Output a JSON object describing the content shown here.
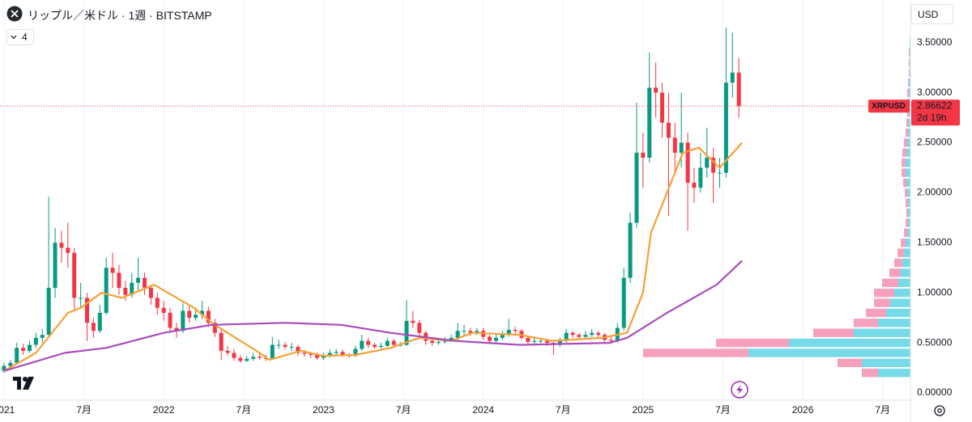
{
  "chart_data": {
    "type": "candlestick",
    "title": "リップル／米ドル · 1週 · BITSTAMP",
    "indicator_count": 4,
    "currency": "USD",
    "symbol": "XRPUSD",
    "countdown": "2d 19h",
    "up_color": "#089981",
    "down_color": "#f23645",
    "grid": true,
    "x": [
      2021,
      2021.04,
      2021.08,
      2021.12,
      2021.16,
      2021.2,
      2021.24,
      2021.28,
      2021.32,
      2021.36,
      2021.4,
      2021.44,
      2021.48,
      2021.52,
      2021.56,
      2021.6,
      2021.64,
      2021.68,
      2021.72,
      2021.76,
      2021.8,
      2021.84,
      2021.88,
      2021.92,
      2021.96,
      2022,
      2022.04,
      2022.08,
      2022.12,
      2022.16,
      2022.2,
      2022.24,
      2022.28,
      2022.32,
      2022.36,
      2022.4,
      2022.44,
      2022.48,
      2022.52,
      2022.56,
      2022.6,
      2022.64,
      2022.68,
      2022.72,
      2022.76,
      2022.8,
      2022.84,
      2022.88,
      2022.92,
      2022.96,
      2023,
      2023.04,
      2023.08,
      2023.12,
      2023.16,
      2023.2,
      2023.24,
      2023.28,
      2023.32,
      2023.36,
      2023.4,
      2023.44,
      2023.48,
      2023.52,
      2023.56,
      2023.6,
      2023.64,
      2023.68,
      2023.72,
      2023.76,
      2023.8,
      2023.84,
      2023.88,
      2023.92,
      2023.96,
      2024,
      2024.04,
      2024.08,
      2024.12,
      2024.16,
      2024.2,
      2024.24,
      2024.28,
      2024.32,
      2024.36,
      2024.4,
      2024.44,
      2024.48,
      2024.52,
      2024.56,
      2024.6,
      2024.64,
      2024.68,
      2024.72,
      2024.76,
      2024.8,
      2024.84,
      2024.88,
      2024.92,
      2024.96,
      2025,
      2025.04,
      2025.08,
      2025.12,
      2025.16,
      2025.2,
      2025.24,
      2025.28,
      2025.32,
      2025.36,
      2025.4,
      2025.44,
      2025.48,
      2025.52,
      2025.56,
      2025.6
    ],
    "open": [
      0.22,
      0.27,
      0.3,
      0.45,
      0.42,
      0.48,
      0.55,
      0.58,
      1.05,
      1.5,
      1.45,
      1.4,
      0.95,
      0.95,
      0.7,
      0.62,
      0.8,
      1.25,
      1.2,
      1.05,
      0.98,
      1.1,
      1.15,
      1.05,
      0.95,
      0.85,
      0.8,
      0.65,
      0.62,
      0.82,
      0.75,
      0.78,
      0.82,
      0.7,
      0.6,
      0.42,
      0.4,
      0.35,
      0.32,
      0.34,
      0.36,
      0.35,
      0.34,
      0.48,
      0.48,
      0.46,
      0.46,
      0.4,
      0.39,
      0.38,
      0.35,
      0.37,
      0.4,
      0.41,
      0.38,
      0.37,
      0.44,
      0.52,
      0.48,
      0.46,
      0.47,
      0.52,
      0.48,
      0.48,
      0.72,
      0.7,
      0.6,
      0.52,
      0.5,
      0.51,
      0.53,
      0.55,
      0.62,
      0.62,
      0.6,
      0.62,
      0.56,
      0.52,
      0.55,
      0.58,
      0.63,
      0.62,
      0.55,
      0.51,
      0.52,
      0.52,
      0.5,
      0.48,
      0.52,
      0.6,
      0.58,
      0.56,
      0.58,
      0.6,
      0.58,
      0.53,
      0.52,
      0.65,
      1.15,
      1.7,
      2.4,
      2.35,
      3.05,
      3.0,
      2.7,
      2.55,
      2.4,
      2.5,
      2.1,
      2.05,
      2.25,
      2.35,
      2.2,
      2.2,
      3.1,
      3.2
    ],
    "high": [
      0.3,
      0.33,
      0.5,
      0.49,
      0.52,
      0.6,
      0.64,
      1.96,
      1.65,
      1.62,
      1.7,
      1.45,
      1.1,
      1.0,
      0.75,
      0.88,
      1.35,
      1.4,
      1.28,
      1.12,
      1.2,
      1.35,
      1.2,
      1.08,
      1.0,
      0.92,
      0.85,
      0.7,
      0.9,
      0.88,
      0.84,
      0.92,
      0.86,
      0.74,
      0.64,
      0.47,
      0.44,
      0.38,
      0.37,
      0.4,
      0.39,
      0.38,
      0.56,
      0.53,
      0.51,
      0.5,
      0.48,
      0.43,
      0.41,
      0.4,
      0.4,
      0.43,
      0.44,
      0.43,
      0.4,
      0.47,
      0.58,
      0.55,
      0.5,
      0.5,
      0.55,
      0.54,
      0.51,
      0.93,
      0.82,
      0.73,
      0.62,
      0.55,
      0.54,
      0.56,
      0.58,
      0.7,
      0.68,
      0.65,
      0.65,
      0.65,
      0.58,
      0.58,
      0.62,
      0.74,
      0.66,
      0.64,
      0.57,
      0.55,
      0.55,
      0.54,
      0.52,
      0.55,
      0.64,
      0.62,
      0.6,
      0.62,
      0.64,
      0.62,
      0.6,
      0.56,
      0.7,
      1.25,
      1.8,
      2.9,
      2.6,
      3.4,
      3.3,
      3.1,
      3.0,
      2.7,
      3.0,
      2.6,
      2.25,
      2.4,
      2.65,
      2.45,
      2.35,
      3.65,
      3.6,
      3.35
    ],
    "low": [
      0.2,
      0.25,
      0.28,
      0.38,
      0.4,
      0.45,
      0.5,
      0.55,
      0.95,
      1.3,
      1.25,
      0.82,
      0.85,
      0.52,
      0.55,
      0.6,
      0.78,
      1.05,
      0.98,
      0.92,
      0.95,
      1.02,
      0.98,
      0.88,
      0.78,
      0.72,
      0.6,
      0.55,
      0.6,
      0.7,
      0.72,
      0.74,
      0.66,
      0.56,
      0.33,
      0.37,
      0.32,
      0.3,
      0.31,
      0.32,
      0.33,
      0.32,
      0.33,
      0.44,
      0.43,
      0.42,
      0.37,
      0.36,
      0.35,
      0.33,
      0.33,
      0.35,
      0.38,
      0.36,
      0.35,
      0.36,
      0.42,
      0.45,
      0.44,
      0.44,
      0.46,
      0.46,
      0.46,
      0.47,
      0.65,
      0.57,
      0.48,
      0.47,
      0.48,
      0.49,
      0.51,
      0.53,
      0.58,
      0.57,
      0.58,
      0.53,
      0.5,
      0.5,
      0.53,
      0.56,
      0.59,
      0.53,
      0.49,
      0.49,
      0.5,
      0.47,
      0.38,
      0.46,
      0.5,
      0.55,
      0.54,
      0.55,
      0.56,
      0.55,
      0.5,
      0.49,
      0.5,
      0.62,
      1.1,
      1.65,
      2.05,
      2.3,
      2.75,
      2.55,
      1.77,
      2.2,
      2.25,
      1.62,
      1.9,
      2.0,
      2.15,
      1.9,
      2.05,
      2.15,
      2.95,
      2.75
    ],
    "close": [
      0.27,
      0.3,
      0.45,
      0.42,
      0.48,
      0.55,
      0.58,
      1.05,
      1.5,
      1.45,
      1.4,
      0.95,
      0.95,
      0.7,
      0.62,
      0.8,
      1.25,
      1.2,
      1.05,
      0.98,
      1.1,
      1.15,
      1.05,
      0.95,
      0.85,
      0.8,
      0.65,
      0.62,
      0.82,
      0.75,
      0.78,
      0.82,
      0.7,
      0.6,
      0.42,
      0.4,
      0.35,
      0.32,
      0.34,
      0.36,
      0.35,
      0.34,
      0.48,
      0.48,
      0.46,
      0.46,
      0.4,
      0.39,
      0.38,
      0.35,
      0.37,
      0.4,
      0.41,
      0.38,
      0.37,
      0.44,
      0.52,
      0.48,
      0.46,
      0.47,
      0.52,
      0.48,
      0.48,
      0.72,
      0.7,
      0.6,
      0.52,
      0.5,
      0.51,
      0.53,
      0.55,
      0.62,
      0.62,
      0.6,
      0.62,
      0.56,
      0.52,
      0.55,
      0.58,
      0.63,
      0.62,
      0.55,
      0.51,
      0.52,
      0.52,
      0.5,
      0.48,
      0.52,
      0.6,
      0.58,
      0.56,
      0.58,
      0.6,
      0.58,
      0.53,
      0.52,
      0.65,
      1.15,
      1.7,
      2.4,
      2.35,
      3.05,
      3.0,
      2.7,
      2.55,
      2.4,
      2.5,
      2.1,
      2.05,
      2.25,
      2.35,
      2.2,
      2.2,
      3.1,
      3.2,
      2.86622
    ],
    "overlays": [
      {
        "type": "line",
        "color": "#f7a035",
        "x": [
          2021,
          2021.2,
          2021.4,
          2021.48,
          2021.61,
          2021.74,
          2021.94,
          2022.19,
          2022.3,
          2022.6,
          2022.66,
          2022.86,
          2023,
          2023.2,
          2023.42,
          2023.6,
          2023.8,
          2023.93,
          2024.23,
          2024.43,
          2024.74,
          2024.9,
          2025,
          2025.05,
          2025.15,
          2025.25,
          2025.35,
          2025.48,
          2025.62
        ],
        "values": [
          0.22,
          0.4,
          0.8,
          0.85,
          1.0,
          0.95,
          1.08,
          0.85,
          0.7,
          0.4,
          0.33,
          0.42,
          0.37,
          0.38,
          0.45,
          0.55,
          0.52,
          0.6,
          0.58,
          0.52,
          0.55,
          0.6,
          1.0,
          1.6,
          2.0,
          2.4,
          2.45,
          2.25,
          2.5
        ]
      },
      {
        "type": "line",
        "color": "#a94bbd",
        "x": [
          2021,
          2021.38,
          2021.64,
          2022,
          2022.3,
          2022.76,
          2023.11,
          2023.42,
          2023.82,
          2024.23,
          2024.79,
          2024.9,
          2025.15,
          2025.46,
          2025.62
        ],
        "values": [
          0.22,
          0.4,
          0.45,
          0.6,
          0.68,
          0.7,
          0.68,
          0.6,
          0.52,
          0.48,
          0.5,
          0.55,
          0.8,
          1.08,
          1.32
        ]
      }
    ],
    "volume_profile": {
      "up_color": "#5fd3e4",
      "down_color": "#f48fb1",
      "xlim": [
        0,
        1000
      ],
      "prices": [
        0.2,
        0.3,
        0.4,
        0.5,
        0.6,
        0.7,
        0.8,
        0.9,
        1.0,
        1.1,
        1.2,
        1.3,
        1.4,
        1.5,
        1.6,
        1.7,
        1.8,
        1.9,
        2.0,
        2.1,
        2.2,
        2.3,
        2.4,
        2.5,
        2.6,
        2.7,
        2.8,
        2.9,
        3.0,
        3.1,
        3.2,
        3.3,
        3.4,
        3.5
      ],
      "up": [
        40,
        60,
        200,
        150,
        70,
        40,
        30,
        25,
        20,
        15,
        12,
        10,
        8,
        6,
        4,
        3,
        3,
        3,
        4,
        5,
        6,
        6,
        5,
        4,
        3,
        3,
        2,
        2,
        2,
        2,
        1,
        1,
        1,
        1
      ],
      "down": [
        20,
        30,
        130,
        90,
        50,
        30,
        25,
        20,
        25,
        20,
        14,
        10,
        8,
        6,
        4,
        3,
        2,
        3,
        3,
        4,
        5,
        5,
        5,
        4,
        3,
        2,
        2,
        2,
        2,
        1,
        1,
        1,
        1,
        0
      ]
    },
    "xlim": [
      2020.975,
      2026.674
    ],
    "ylim": [
      -0.0727,
      3.926
    ],
    "xticks": [
      {
        "value": 2021,
        "label": "2021"
      },
      {
        "value": 2021.5,
        "label": "7月"
      },
      {
        "value": 2022,
        "label": "2022"
      },
      {
        "value": 2022.5,
        "label": "7月"
      },
      {
        "value": 2023,
        "label": "2023"
      },
      {
        "value": 2023.5,
        "label": "7月"
      },
      {
        "value": 2024,
        "label": "2024"
      },
      {
        "value": 2024.5,
        "label": "7月"
      },
      {
        "value": 2025,
        "label": "2025"
      },
      {
        "value": 2025.5,
        "label": "7月"
      },
      {
        "value": 2026,
        "label": "2026"
      },
      {
        "value": 2026.5,
        "label": "7月"
      }
    ],
    "yticks": [
      {
        "value": 0,
        "label": "0.00000"
      },
      {
        "value": 0.5,
        "label": "0.50000"
      },
      {
        "value": 1,
        "label": "1.00000"
      },
      {
        "value": 1.5,
        "label": "1.50000"
      },
      {
        "value": 2,
        "label": "2.00000"
      },
      {
        "value": 2.5,
        "label": "2.50000"
      },
      {
        "value": 3,
        "label": "3.00000"
      },
      {
        "value": 3.5,
        "label": "3.50000"
      }
    ]
  }
}
